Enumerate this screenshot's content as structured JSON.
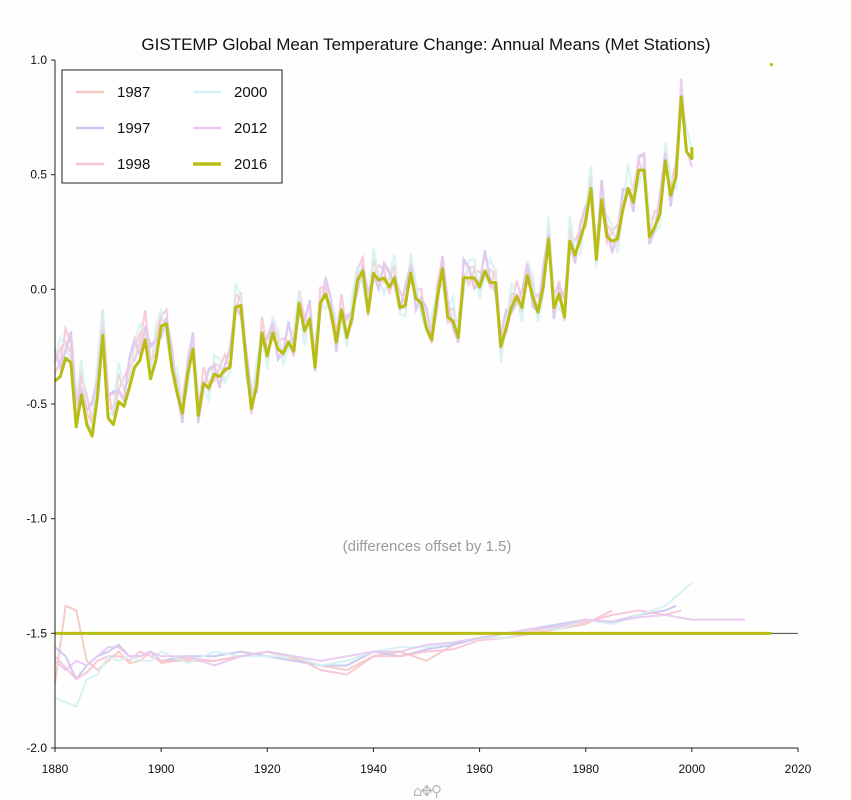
{
  "chart_data": {
    "type": "line",
    "title": "GISTEMP Global Mean Temperature Change: Annual Means (Met Stations)",
    "annotation": "(differences offset by 1.5)",
    "xlim": [
      1880,
      2020
    ],
    "ylim": [
      -2.0,
      1.0
    ],
    "x_ticks": [
      1880,
      1900,
      1920,
      1940,
      1960,
      1980,
      2000,
      2020
    ],
    "y_ticks": [
      -2.0,
      -1.5,
      -1.0,
      -0.5,
      0.0,
      0.5,
      1.0
    ],
    "x_tick_labels": [
      "1880",
      "1900",
      "1920",
      "1940",
      "1960",
      "1980",
      "2000",
      "2020"
    ],
    "y_tick_labels": [
      "-2.0",
      "-1.5",
      "-1.0",
      "-0.5",
      "0.0",
      "0.5",
      "1.0"
    ],
    "offset_line": -1.5,
    "grid": false,
    "legend_position": "top-left",
    "main_series": {
      "name": "2016",
      "color": "#b7bd12",
      "x": [
        1880,
        1881,
        1882,
        1883,
        1884,
        1885,
        1886,
        1887,
        1888,
        1889,
        1890,
        1891,
        1892,
        1893,
        1894,
        1895,
        1896,
        1897,
        1898,
        1899,
        1900,
        1901,
        1902,
        1903,
        1904,
        1905,
        1906,
        1907,
        1908,
        1909,
        1910,
        1911,
        1912,
        1913,
        1914,
        1915,
        1916,
        1917,
        1918,
        1919,
        1920,
        1921,
        1922,
        1923,
        1924,
        1925,
        1926,
        1927,
        1928,
        1929,
        1930,
        1931,
        1932,
        1933,
        1934,
        1935,
        1936,
        1937,
        1938,
        1939,
        1940,
        1941,
        1942,
        1943,
        1944,
        1945,
        1946,
        1947,
        1948,
        1949,
        1950,
        1951,
        1952,
        1953,
        1954,
        1955,
        1956,
        1957,
        1958,
        1959,
        1960,
        1961,
        1962,
        1963,
        1964,
        1965,
        1966,
        1967,
        1968,
        1969,
        1970,
        1971,
        1972,
        1973,
        1974,
        1975,
        1976,
        1977,
        1978,
        1979,
        1980,
        1981,
        1982,
        1983,
        1984,
        1985,
        1986,
        1987,
        1988,
        1989,
        1990,
        1991,
        1992,
        1993,
        1994,
        1995,
        1996,
        1997,
        1998,
        1999,
        2000
      ],
      "y": [
        -0.4,
        -0.38,
        -0.3,
        -0.32,
        -0.6,
        -0.46,
        -0.59,
        -0.64,
        -0.47,
        -0.2,
        -0.56,
        -0.59,
        -0.49,
        -0.51,
        -0.43,
        -0.34,
        -0.31,
        -0.22,
        -0.39,
        -0.31,
        -0.16,
        -0.15,
        -0.34,
        -0.45,
        -0.54,
        -0.37,
        -0.26,
        -0.55,
        -0.41,
        -0.43,
        -0.37,
        -0.38,
        -0.35,
        -0.34,
        -0.08,
        -0.07,
        -0.31,
        -0.52,
        -0.42,
        -0.19,
        -0.29,
        -0.19,
        -0.26,
        -0.28,
        -0.23,
        -0.27,
        -0.06,
        -0.18,
        -0.13,
        -0.34,
        -0.06,
        -0.02,
        -0.1,
        -0.23,
        -0.09,
        -0.21,
        -0.12,
        0.04,
        0.08,
        -0.1,
        0.07,
        0.04,
        0.05,
        0.01,
        0.05,
        -0.08,
        -0.07,
        0.07,
        -0.04,
        -0.06,
        -0.17,
        -0.22,
        -0.04,
        0.09,
        -0.12,
        -0.14,
        -0.21,
        0.05,
        0.05,
        0.05,
        0.01,
        0.08,
        0.03,
        0.03,
        -0.25,
        -0.17,
        -0.08,
        -0.03,
        -0.08,
        0.06,
        -0.03,
        -0.1,
        0.01,
        0.22,
        -0.08,
        -0.02,
        -0.12,
        0.21,
        0.15,
        0.22,
        0.3,
        0.44,
        0.13,
        0.39,
        0.23,
        0.21,
        0.22,
        0.35,
        0.44,
        0.38,
        0.52,
        0.52,
        0.23,
        0.27,
        0.33,
        0.56,
        0.41,
        0.49,
        0.84,
        0.6,
        0.57
      ],
      "x_extra": [
        2000
      ],
      "y_extra": [
        0.62
      ]
    },
    "faded_series": [
      {
        "name": "1987",
        "color": "#f3c9c1"
      },
      {
        "name": "1997",
        "color": "#c7c6f0"
      },
      {
        "name": "1998",
        "color": "#f7c4d3"
      },
      {
        "name": "2000",
        "color": "#d4f1f3"
      },
      {
        "name": "2012",
        "color": "#e8c8ef"
      }
    ],
    "difference_series": {
      "1987": {
        "x": [
          1880,
          1882,
          1884,
          1886,
          1888,
          1890,
          1892,
          1894,
          1896,
          1898,
          1900,
          1905,
          1910,
          1915,
          1920,
          1925,
          1930,
          1935,
          1940,
          1945,
          1950,
          1955,
          1960,
          1965,
          1970,
          1975,
          1980,
          1985
        ],
        "y": [
          -1.72,
          -1.38,
          -1.4,
          -1.62,
          -1.66,
          -1.62,
          -1.58,
          -1.63,
          -1.62,
          -1.58,
          -1.63,
          -1.61,
          -1.62,
          -1.6,
          -1.58,
          -1.61,
          -1.64,
          -1.66,
          -1.6,
          -1.58,
          -1.62,
          -1.55,
          -1.52,
          -1.52,
          -1.5,
          -1.48,
          -1.46,
          -1.4
        ]
      },
      "1997": {
        "x": [
          1880,
          1882,
          1884,
          1886,
          1888,
          1890,
          1892,
          1894,
          1896,
          1898,
          1900,
          1905,
          1910,
          1915,
          1920,
          1925,
          1930,
          1935,
          1940,
          1945,
          1950,
          1955,
          1960,
          1965,
          1970,
          1975,
          1980,
          1985,
          1990,
          1995,
          1997
        ],
        "y": [
          -1.56,
          -1.6,
          -1.7,
          -1.64,
          -1.6,
          -1.58,
          -1.55,
          -1.6,
          -1.6,
          -1.58,
          -1.62,
          -1.6,
          -1.6,
          -1.58,
          -1.6,
          -1.62,
          -1.64,
          -1.64,
          -1.58,
          -1.6,
          -1.57,
          -1.55,
          -1.52,
          -1.5,
          -1.48,
          -1.46,
          -1.44,
          -1.45,
          -1.42,
          -1.4,
          -1.38
        ]
      },
      "1998": {
        "x": [
          1880,
          1882,
          1884,
          1886,
          1888,
          1890,
          1892,
          1894,
          1896,
          1898,
          1900,
          1905,
          1910,
          1915,
          1920,
          1925,
          1930,
          1935,
          1940,
          1945,
          1950,
          1955,
          1960,
          1965,
          1970,
          1975,
          1980,
          1985,
          1990,
          1995,
          1998
        ],
        "y": [
          -1.6,
          -1.65,
          -1.7,
          -1.67,
          -1.62,
          -1.6,
          -1.6,
          -1.62,
          -1.58,
          -1.6,
          -1.62,
          -1.62,
          -1.62,
          -1.6,
          -1.58,
          -1.6,
          -1.66,
          -1.68,
          -1.6,
          -1.6,
          -1.58,
          -1.57,
          -1.53,
          -1.52,
          -1.49,
          -1.47,
          -1.45,
          -1.42,
          -1.4,
          -1.42,
          -1.4
        ]
      },
      "2000": {
        "x": [
          1880,
          1882,
          1884,
          1886,
          1888,
          1890,
          1892,
          1894,
          1896,
          1898,
          1900,
          1905,
          1910,
          1915,
          1920,
          1925,
          1930,
          1935,
          1940,
          1945,
          1950,
          1955,
          1960,
          1965,
          1970,
          1975,
          1980,
          1985,
          1990,
          1995,
          2000
        ],
        "y": [
          -1.78,
          -1.8,
          -1.82,
          -1.7,
          -1.68,
          -1.6,
          -1.62,
          -1.6,
          -1.62,
          -1.62,
          -1.58,
          -1.63,
          -1.58,
          -1.6,
          -1.6,
          -1.6,
          -1.64,
          -1.62,
          -1.58,
          -1.56,
          -1.56,
          -1.54,
          -1.52,
          -1.52,
          -1.48,
          -1.48,
          -1.44,
          -1.46,
          -1.42,
          -1.38,
          -1.28
        ]
      },
      "2012": {
        "x": [
          1880,
          1882,
          1884,
          1886,
          1888,
          1890,
          1892,
          1894,
          1896,
          1898,
          1900,
          1905,
          1910,
          1915,
          1920,
          1925,
          1930,
          1935,
          1940,
          1945,
          1950,
          1955,
          1960,
          1965,
          1970,
          1975,
          1980,
          1985,
          1990,
          1995,
          2000,
          2005,
          2010
        ],
        "y": [
          -1.62,
          -1.66,
          -1.62,
          -1.64,
          -1.6,
          -1.56,
          -1.56,
          -1.6,
          -1.6,
          -1.58,
          -1.6,
          -1.6,
          -1.64,
          -1.6,
          -1.58,
          -1.6,
          -1.62,
          -1.6,
          -1.58,
          -1.58,
          -1.55,
          -1.54,
          -1.52,
          -1.5,
          -1.48,
          -1.47,
          -1.44,
          -1.45,
          -1.43,
          -1.42,
          -1.44,
          -1.44,
          -1.44
        ]
      }
    },
    "zero_diff_series": {
      "name": "2016",
      "x": [
        1880,
        2015
      ],
      "y": [
        -1.5,
        -1.5
      ]
    },
    "extra_point": {
      "x": 2015,
      "y": 0.98
    }
  },
  "toolbar": {
    "icons": [
      "home-icon",
      "pan-icon",
      "zoom-icon"
    ]
  }
}
